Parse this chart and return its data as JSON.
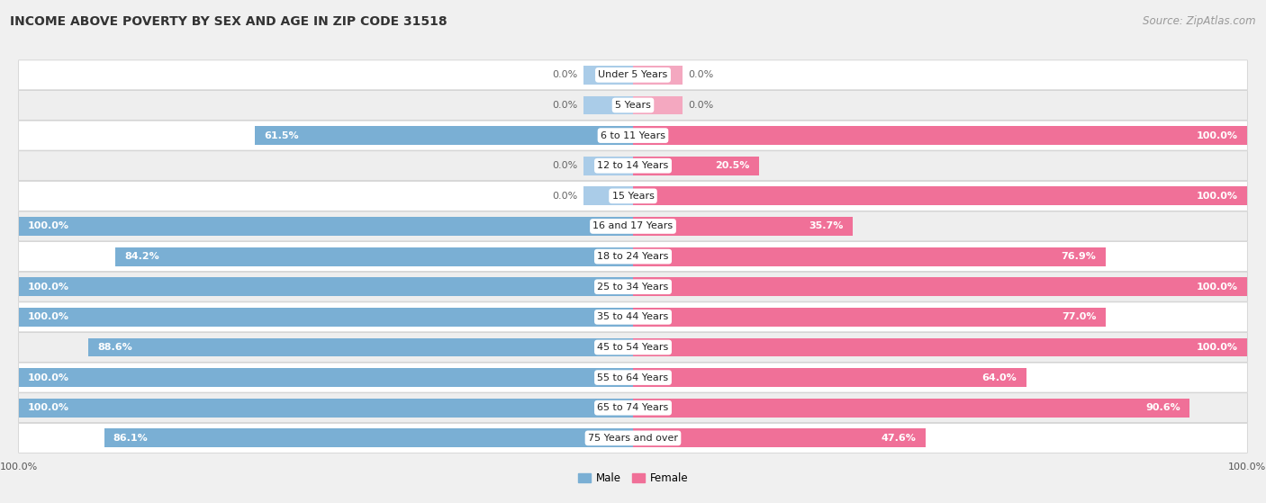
{
  "title": "INCOME ABOVE POVERTY BY SEX AND AGE IN ZIP CODE 31518",
  "source": "Source: ZipAtlas.com",
  "categories": [
    "Under 5 Years",
    "5 Years",
    "6 to 11 Years",
    "12 to 14 Years",
    "15 Years",
    "16 and 17 Years",
    "18 to 24 Years",
    "25 to 34 Years",
    "35 to 44 Years",
    "45 to 54 Years",
    "55 to 64 Years",
    "65 to 74 Years",
    "75 Years and over"
  ],
  "male_values": [
    0.0,
    0.0,
    61.5,
    0.0,
    0.0,
    100.0,
    84.2,
    100.0,
    100.0,
    88.6,
    100.0,
    100.0,
    86.1
  ],
  "female_values": [
    0.0,
    0.0,
    100.0,
    20.5,
    100.0,
    35.7,
    76.9,
    100.0,
    77.0,
    100.0,
    64.0,
    90.6,
    47.6
  ],
  "male_color": "#7aafd4",
  "female_color": "#f07098",
  "male_zero_color": "#aacce8",
  "female_zero_color": "#f4a8c0",
  "row_color_even": "#ffffff",
  "row_color_odd": "#eeeeee",
  "bg_color": "#f0f0f0",
  "title_fontsize": 10,
  "source_fontsize": 8.5,
  "label_fontsize": 8,
  "tick_fontsize": 8,
  "bar_height": 0.62,
  "xlim": 100,
  "zero_stub": 8
}
